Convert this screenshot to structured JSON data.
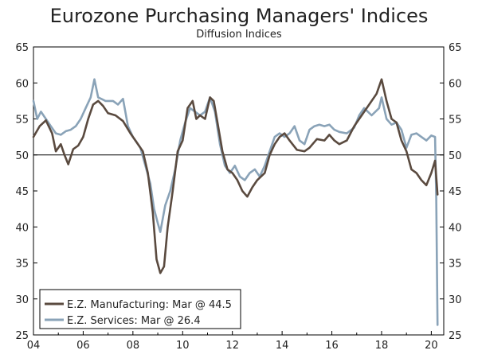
{
  "chart_data": {
    "type": "line",
    "title": "Eurozone Purchasing Managers' Indices",
    "subtitle": "Diffusion Indices",
    "xlabel": "",
    "ylabel": "",
    "xlim": [
      2004.0,
      2020.5
    ],
    "ylim": [
      25,
      65
    ],
    "x_ticks": [
      {
        "value": 2004,
        "label": "04"
      },
      {
        "value": 2006,
        "label": "06"
      },
      {
        "value": 2008,
        "label": "08"
      },
      {
        "value": 2010,
        "label": "10"
      },
      {
        "value": 2012,
        "label": "12"
      },
      {
        "value": 2014,
        "label": "14"
      },
      {
        "value": 2016,
        "label": "16"
      },
      {
        "value": 2018,
        "label": "18"
      },
      {
        "value": 2020,
        "label": "20"
      }
    ],
    "y_ticks": [
      25,
      30,
      35,
      40,
      45,
      50,
      55,
      60,
      65
    ],
    "reference_line": 50,
    "series": [
      {
        "name": "E.Z. Manufacturing",
        "legend": "E.Z. Manufacturing: Mar @ 44.5",
        "color": "#5a4a3f",
        "points": [
          [
            2004.0,
            52.5
          ],
          [
            2004.25,
            54.0
          ],
          [
            2004.5,
            54.8
          ],
          [
            2004.75,
            53.0
          ],
          [
            2004.9,
            50.5
          ],
          [
            2005.1,
            51.5
          ],
          [
            2005.25,
            50.0
          ],
          [
            2005.4,
            48.7
          ],
          [
            2005.6,
            50.8
          ],
          [
            2005.8,
            51.3
          ],
          [
            2006.0,
            52.5
          ],
          [
            2006.2,
            55.0
          ],
          [
            2006.4,
            57.0
          ],
          [
            2006.6,
            57.5
          ],
          [
            2006.8,
            56.8
          ],
          [
            2007.0,
            55.8
          ],
          [
            2007.3,
            55.5
          ],
          [
            2007.6,
            54.7
          ],
          [
            2007.9,
            53.0
          ],
          [
            2008.1,
            52.0
          ],
          [
            2008.4,
            50.5
          ],
          [
            2008.6,
            47.5
          ],
          [
            2008.8,
            42.0
          ],
          [
            2008.95,
            35.5
          ],
          [
            2009.1,
            33.6
          ],
          [
            2009.25,
            34.5
          ],
          [
            2009.4,
            40.0
          ],
          [
            2009.6,
            45.0
          ],
          [
            2009.8,
            50.5
          ],
          [
            2010.0,
            52.0
          ],
          [
            2010.2,
            56.5
          ],
          [
            2010.4,
            57.5
          ],
          [
            2010.55,
            55.0
          ],
          [
            2010.7,
            55.5
          ],
          [
            2010.9,
            55.0
          ],
          [
            2011.1,
            58.0
          ],
          [
            2011.25,
            57.5
          ],
          [
            2011.4,
            54.5
          ],
          [
            2011.6,
            50.5
          ],
          [
            2011.8,
            48.0
          ],
          [
            2012.0,
            47.5
          ],
          [
            2012.2,
            46.5
          ],
          [
            2012.4,
            45.0
          ],
          [
            2012.6,
            44.2
          ],
          [
            2012.8,
            45.5
          ],
          [
            2013.0,
            46.5
          ],
          [
            2013.3,
            47.5
          ],
          [
            2013.5,
            50.0
          ],
          [
            2013.7,
            51.5
          ],
          [
            2013.9,
            52.5
          ],
          [
            2014.1,
            53.0
          ],
          [
            2014.3,
            52.0
          ],
          [
            2014.6,
            50.7
          ],
          [
            2014.9,
            50.5
          ],
          [
            2015.1,
            51.0
          ],
          [
            2015.4,
            52.2
          ],
          [
            2015.7,
            52.0
          ],
          [
            2015.9,
            52.8
          ],
          [
            2016.1,
            52.0
          ],
          [
            2016.3,
            51.5
          ],
          [
            2016.6,
            52.0
          ],
          [
            2016.9,
            54.0
          ],
          [
            2017.2,
            55.5
          ],
          [
            2017.5,
            57.0
          ],
          [
            2017.8,
            58.5
          ],
          [
            2018.0,
            60.5
          ],
          [
            2018.2,
            57.5
          ],
          [
            2018.4,
            55.0
          ],
          [
            2018.6,
            54.5
          ],
          [
            2018.8,
            52.0
          ],
          [
            2019.0,
            50.5
          ],
          [
            2019.2,
            48.0
          ],
          [
            2019.4,
            47.5
          ],
          [
            2019.6,
            46.5
          ],
          [
            2019.8,
            45.8
          ],
          [
            2020.0,
            47.5
          ],
          [
            2020.15,
            49.2
          ],
          [
            2020.25,
            44.5
          ]
        ]
      },
      {
        "name": "E.Z. Services",
        "legend": "E.Z. Services: Mar @ 26.4",
        "color": "#8aa3b8",
        "points": [
          [
            2004.0,
            57.5
          ],
          [
            2004.15,
            55.0
          ],
          [
            2004.3,
            56.0
          ],
          [
            2004.5,
            55.0
          ],
          [
            2004.7,
            54.0
          ],
          [
            2004.9,
            53.0
          ],
          [
            2005.1,
            52.8
          ],
          [
            2005.3,
            53.3
          ],
          [
            2005.5,
            53.5
          ],
          [
            2005.7,
            54.0
          ],
          [
            2005.9,
            55.0
          ],
          [
            2006.1,
            56.5
          ],
          [
            2006.3,
            58.0
          ],
          [
            2006.45,
            60.5
          ],
          [
            2006.6,
            58.0
          ],
          [
            2006.9,
            57.5
          ],
          [
            2007.2,
            57.5
          ],
          [
            2007.4,
            57.0
          ],
          [
            2007.6,
            57.8
          ],
          [
            2007.8,
            54.0
          ],
          [
            2008.0,
            52.5
          ],
          [
            2008.3,
            51.0
          ],
          [
            2008.5,
            48.5
          ],
          [
            2008.7,
            46.0
          ],
          [
            2008.85,
            42.5
          ],
          [
            2009.0,
            40.5
          ],
          [
            2009.1,
            39.3
          ],
          [
            2009.3,
            43.0
          ],
          [
            2009.5,
            45.0
          ],
          [
            2009.7,
            48.0
          ],
          [
            2009.9,
            52.0
          ],
          [
            2010.1,
            54.5
          ],
          [
            2010.3,
            56.5
          ],
          [
            2010.5,
            56.0
          ],
          [
            2010.7,
            55.5
          ],
          [
            2010.9,
            56.0
          ],
          [
            2011.1,
            58.0
          ],
          [
            2011.3,
            56.0
          ],
          [
            2011.5,
            51.5
          ],
          [
            2011.7,
            48.5
          ],
          [
            2011.9,
            47.5
          ],
          [
            2012.1,
            48.5
          ],
          [
            2012.3,
            47.0
          ],
          [
            2012.5,
            46.5
          ],
          [
            2012.7,
            47.5
          ],
          [
            2012.9,
            48.0
          ],
          [
            2013.1,
            47.0
          ],
          [
            2013.3,
            48.5
          ],
          [
            2013.5,
            50.5
          ],
          [
            2013.7,
            52.5
          ],
          [
            2013.9,
            53.0
          ],
          [
            2014.1,
            52.5
          ],
          [
            2014.3,
            53.0
          ],
          [
            2014.5,
            54.0
          ],
          [
            2014.7,
            52.0
          ],
          [
            2014.9,
            51.5
          ],
          [
            2015.1,
            53.5
          ],
          [
            2015.3,
            54.0
          ],
          [
            2015.5,
            54.2
          ],
          [
            2015.7,
            54.0
          ],
          [
            2015.9,
            54.2
          ],
          [
            2016.1,
            53.5
          ],
          [
            2016.3,
            53.2
          ],
          [
            2016.6,
            53.0
          ],
          [
            2016.9,
            53.8
          ],
          [
            2017.1,
            55.5
          ],
          [
            2017.3,
            56.5
          ],
          [
            2017.6,
            55.5
          ],
          [
            2017.9,
            56.5
          ],
          [
            2018.0,
            58.0
          ],
          [
            2018.2,
            55.0
          ],
          [
            2018.4,
            54.2
          ],
          [
            2018.6,
            54.5
          ],
          [
            2018.8,
            53.5
          ],
          [
            2019.0,
            51.0
          ],
          [
            2019.2,
            52.8
          ],
          [
            2019.4,
            53.0
          ],
          [
            2019.6,
            52.5
          ],
          [
            2019.8,
            52.0
          ],
          [
            2020.0,
            52.7
          ],
          [
            2020.15,
            52.5
          ],
          [
            2020.2,
            44.0
          ],
          [
            2020.25,
            26.4
          ]
        ]
      }
    ]
  }
}
